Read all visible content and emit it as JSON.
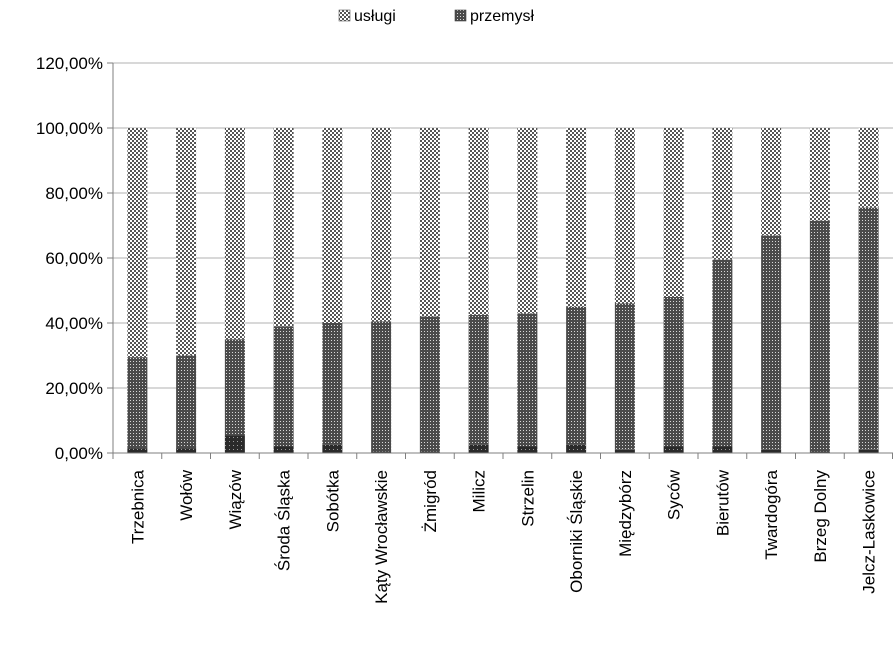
{
  "chart_data": {
    "type": "bar",
    "stacked": true,
    "categories": [
      "Trzebnica",
      "Wołów",
      "Wiązów",
      "Środa Śląska",
      "Sobótka",
      "Kąty Wrocławskie",
      "Żmigród",
      "Milicz",
      "Strzelin",
      "Oborniki Śląskie",
      "Międzybórz",
      "Syców",
      "Bierutów",
      "Twardogóra",
      "Brzeg Dolny",
      "Jelcz-Laskowice"
    ],
    "series": [
      {
        "name": "",
        "values": [
          1.5,
          1.5,
          5.5,
          2.0,
          2.5,
          0.5,
          0.5,
          2.5,
          2.0,
          2.5,
          1.0,
          2.0,
          2.0,
          1.0,
          0.5,
          1.0
        ]
      },
      {
        "name": "przemysł",
        "values": [
          28.0,
          28.5,
          29.5,
          37.0,
          37.5,
          40.0,
          41.5,
          40.0,
          41.0,
          42.5,
          45.0,
          46.0,
          57.5,
          66.0,
          71.0,
          74.5
        ]
      },
      {
        "name": "usługi",
        "values": [
          70.5,
          70.0,
          65.0,
          61.0,
          60.0,
          59.5,
          58.0,
          57.5,
          57.0,
          55.0,
          54.0,
          52.0,
          40.5,
          33.0,
          28.5,
          24.5
        ]
      }
    ],
    "ylim": [
      0,
      120
    ],
    "yticks": [
      "0,00%",
      "20,00%",
      "40,00%",
      "60,00%",
      "80,00%",
      "100,00%",
      "120,00%"
    ],
    "grid": true,
    "legend_position": "top-center",
    "legend": [
      {
        "label": "usługi",
        "pattern": "checker"
      },
      {
        "label": "przemysł",
        "pattern": "grid"
      }
    ],
    "colors": {
      "bottom": "#333333",
      "przemysl": "#555555",
      "uslugi": "#666666",
      "grid": "#b0b0b0",
      "axis": "#7f7f7f"
    }
  }
}
